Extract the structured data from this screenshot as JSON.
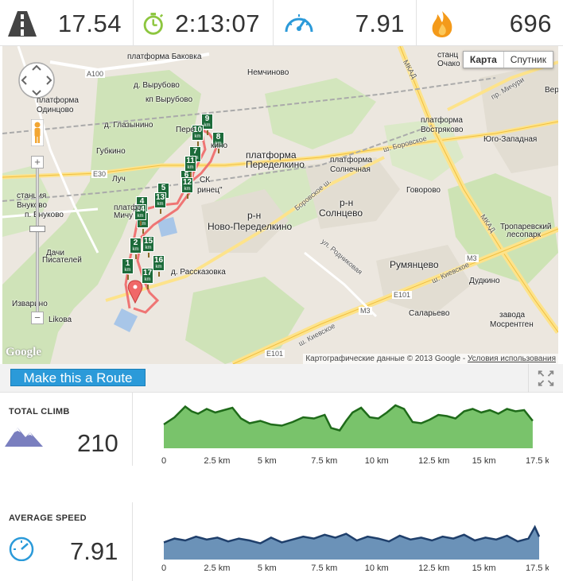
{
  "stats": {
    "distance": {
      "icon": "road-icon",
      "value": "17.54"
    },
    "duration": {
      "icon": "stopwatch-icon",
      "value": "2:13:07"
    },
    "speed": {
      "icon": "speedometer-icon",
      "value": "7.91"
    },
    "calories": {
      "icon": "flame-icon",
      "value": "696"
    }
  },
  "map": {
    "map_types": [
      "Карта",
      "Спутник"
    ],
    "active_map_type": "Карта",
    "attribution": "Картографические данные © 2013 Google - ",
    "terms_link": "Условия использования",
    "logo": "Google",
    "labels": {
      "baкovka": "платформа Баковка",
      "nemchinovo": "Немчиново",
      "vyrubovo": "д. Вырубово",
      "kp_vyrubovo": "кп Вырубово",
      "odintsovo1": "платформа",
      "odintsovo2": "Одинцово",
      "glazynino": "д. Глазынино",
      "gubkino": "Губкино",
      "luch": "Луч",
      "vnukovo_st1": "станция",
      "vnukovo_st2": "Внуково",
      "p_vnukovo": "п. Внуково",
      "dachi1": "Дачи",
      "dachi2": "Писателей",
      "izvarino": "Изварино",
      "likova": "Likова",
      "peredelkino1": "платформа",
      "peredelkino2": "Переделкино",
      "solnechnaya1": "платформа",
      "solnechnaya2": "Солнечная",
      "vostryakovo1": "платформа",
      "vostryakovo2": "Востряково",
      "govorovo": "Говорово",
      "rn_solntsevo1": "р-н",
      "rn_solntsevo2": "Солнцево",
      "rn_novo1": "р-н",
      "rn_novo2": "Ново-Переделкино",
      "rasskazovka": "д. Рассказовка",
      "rumyantsevo": "Румянцево",
      "salarievo": "Саларьево",
      "dudkino": "Дудкино",
      "zavod1": "завода",
      "zavod2": "Мосрентген",
      "yugo_zapadnaya": "Юго-Западная",
      "troparevsky1": "Тропаревский",
      "troparevsky2": "лесопарк",
      "stanc1": "станц",
      "stanc2": "Очако",
      "ver": "Вер",
      "michurinsky": "пр. Мичури",
      "mkad1": "МКАД",
      "mkad2": "МКАД",
      "borovskoe1": "ш. Боровское",
      "borovskoe2": "Боровское ш.",
      "kievskoe": "ш. Киевское",
      "kievskoe2": "ш. Киевское",
      "rodnikovaya": "ул. Родниковая",
      "a100": "A100",
      "e30": "E30",
      "e101": "E101",
      "e101b": "E101",
      "m3": "M3",
      "m3b": "M3",
      "mich_pl": "платфо",
      "mich_pl2": "Мичу",
      "perede": "Пере",
      "kino": "кино",
      "sk": "СК",
      "prinets": "ринец\"",
      "ska": "ска"
    },
    "km_markers": [
      "1",
      "2",
      "3",
      "4",
      "5",
      "6",
      "7",
      "8",
      "9",
      "10",
      "11",
      "12",
      "13",
      "14",
      "15",
      "16",
      "17"
    ],
    "km_unit": "km"
  },
  "route_bar": {
    "button_label": "Make this a Route"
  },
  "total_climb": {
    "label": "TOTAL CLIMB",
    "value": "210",
    "icon": "mountain-icon",
    "color": "#4caf3a"
  },
  "average_speed": {
    "label": "AVERAGE SPEED",
    "value": "7.91",
    "icon": "speedometer-icon",
    "color": "#3a6da0"
  },
  "chart_data": [
    {
      "type": "area",
      "x_ticks": [
        "0",
        "2.5 km",
        "5 km",
        "7.5 km",
        "10 km",
        "12.5 km",
        "15 km",
        "17.5 km"
      ],
      "xlim": [
        0,
        17.5
      ],
      "x": [
        0,
        0.5,
        1.0,
        1.3,
        1.6,
        2.0,
        2.4,
        2.8,
        3.2,
        3.6,
        4.0,
        4.5,
        5.0,
        5.5,
        6.0,
        6.5,
        7.0,
        7.5,
        7.8,
        8.2,
        8.5,
        8.8,
        9.2,
        9.6,
        10.0,
        10.4,
        10.8,
        11.2,
        11.6,
        12.0,
        12.4,
        12.8,
        13.2,
        13.6,
        14.0,
        14.4,
        14.8,
        15.2,
        15.6,
        16.0,
        16.4,
        16.8,
        17.2
      ],
      "values": [
        40,
        52,
        70,
        62,
        58,
        66,
        60,
        64,
        68,
        50,
        42,
        46,
        40,
        38,
        44,
        52,
        50,
        56,
        34,
        30,
        46,
        60,
        68,
        52,
        50,
        60,
        72,
        66,
        44,
        42,
        48,
        56,
        54,
        50,
        62,
        66,
        60,
        64,
        58,
        66,
        62,
        64,
        46
      ],
      "ylim": [
        0,
        80
      ],
      "color": "#4caf3a"
    },
    {
      "type": "area",
      "x_ticks": [
        "0",
        "2.5 km",
        "5 km",
        "7.5 km",
        "10 km",
        "12.5 km",
        "15 km",
        "17.5 km"
      ],
      "xlim": [
        0,
        17.5
      ],
      "x": [
        0,
        0.5,
        1.0,
        1.5,
        2.0,
        2.5,
        3.0,
        3.5,
        4.0,
        4.5,
        5.0,
        5.5,
        6.0,
        6.5,
        7.0,
        7.5,
        8.0,
        8.5,
        9.0,
        9.5,
        10.0,
        10.5,
        11.0,
        11.5,
        12.0,
        12.5,
        13.0,
        13.5,
        14.0,
        14.5,
        15.0,
        15.5,
        16.0,
        16.5,
        17.0,
        17.3,
        17.5
      ],
      "values": [
        18,
        22,
        20,
        24,
        21,
        23,
        19,
        22,
        20,
        17,
        23,
        18,
        21,
        24,
        22,
        26,
        23,
        27,
        20,
        24,
        22,
        19,
        25,
        21,
        23,
        20,
        24,
        22,
        26,
        20,
        23,
        21,
        25,
        19,
        22,
        34,
        24
      ],
      "ylim": [
        0,
        40
      ],
      "color": "#3a6da0"
    }
  ]
}
